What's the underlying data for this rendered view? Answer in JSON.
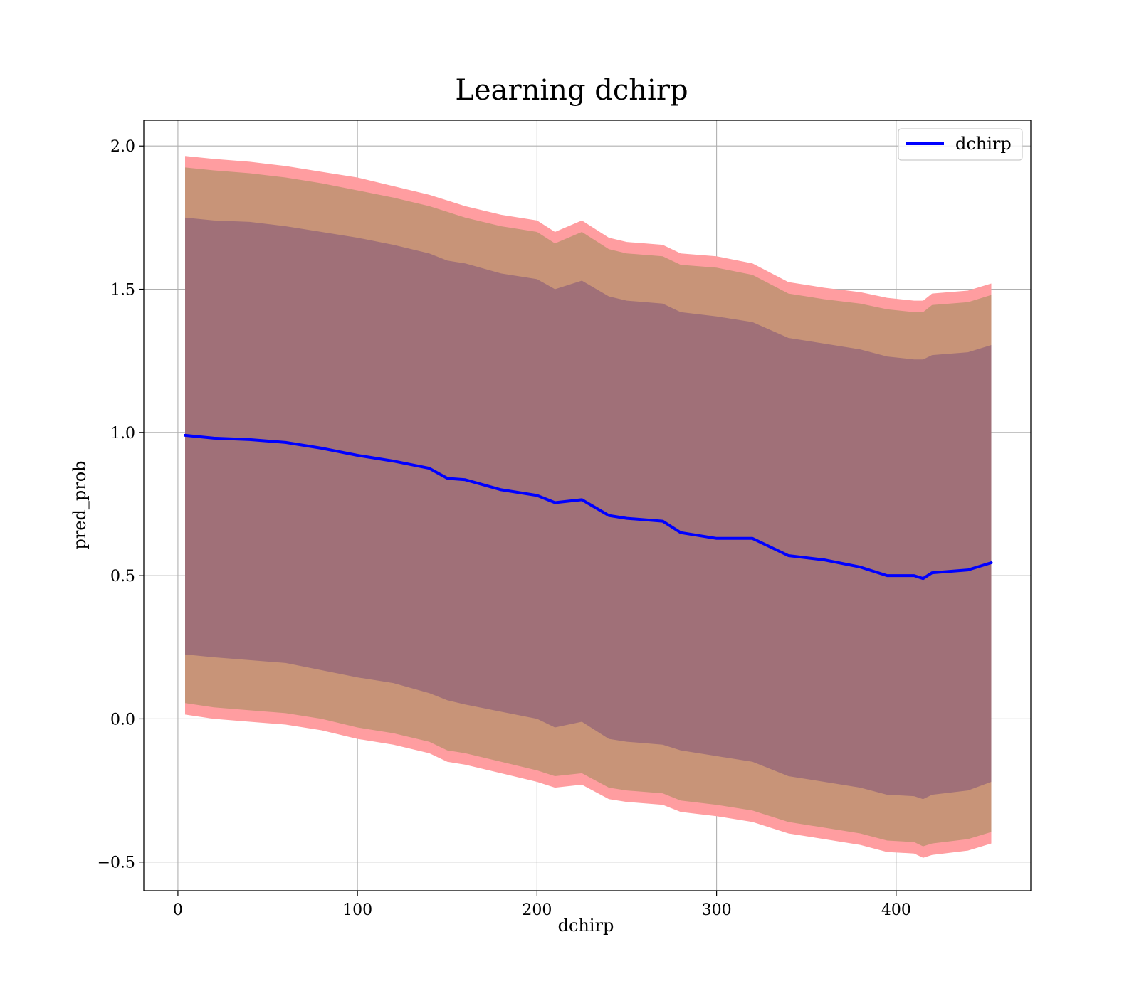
{
  "chart_data": {
    "type": "line",
    "title": "Learning dchirp",
    "xlabel": "dchirp",
    "ylabel": "pred_prob",
    "xlim": [
      -19,
      475
    ],
    "ylim": [
      -0.6,
      2.09
    ],
    "xticks": [
      0,
      100,
      200,
      300,
      400
    ],
    "yticks": [
      -0.5,
      0.0,
      0.5,
      1.0,
      1.5,
      2.0
    ],
    "xtick_labels": [
      "0",
      "100",
      "200",
      "300",
      "400"
    ],
    "ytick_labels": [
      "−0.5",
      "0.0",
      "0.5",
      "1.0",
      "1.5",
      "2.0"
    ],
    "grid": true,
    "legend_position": "top-right",
    "colors": {
      "line": "#0000ff",
      "band_outer": "#ff9da0",
      "band_middle": "#c89478",
      "band_inner": "#a07078"
    },
    "x": [
      4,
      20,
      40,
      60,
      80,
      100,
      120,
      140,
      150,
      160,
      180,
      200,
      210,
      225,
      240,
      250,
      270,
      280,
      300,
      320,
      340,
      360,
      380,
      395,
      410,
      415,
      420,
      440,
      453
    ],
    "series": [
      {
        "name": "dchirp",
        "values": [
          0.99,
          0.98,
          0.975,
          0.965,
          0.945,
          0.92,
          0.9,
          0.875,
          0.84,
          0.835,
          0.8,
          0.78,
          0.755,
          0.765,
          0.71,
          0.7,
          0.69,
          0.65,
          0.63,
          0.63,
          0.57,
          0.555,
          0.53,
          0.5,
          0.5,
          0.49,
          0.51,
          0.52,
          0.545
        ]
      }
    ],
    "bands": [
      {
        "role": "outer",
        "upper": [
          1.965,
          1.955,
          1.945,
          1.93,
          1.91,
          1.89,
          1.86,
          1.83,
          1.81,
          1.79,
          1.76,
          1.74,
          1.7,
          1.74,
          1.68,
          1.665,
          1.655,
          1.625,
          1.615,
          1.59,
          1.525,
          1.505,
          1.49,
          1.47,
          1.46,
          1.46,
          1.485,
          1.495,
          1.52
        ],
        "lower": [
          0.015,
          0.0,
          -0.01,
          -0.02,
          -0.04,
          -0.07,
          -0.09,
          -0.12,
          -0.15,
          -0.16,
          -0.19,
          -0.22,
          -0.24,
          -0.23,
          -0.28,
          -0.29,
          -0.3,
          -0.325,
          -0.34,
          -0.36,
          -0.4,
          -0.42,
          -0.44,
          -0.465,
          -0.47,
          -0.485,
          -0.475,
          -0.46,
          -0.435
        ]
      },
      {
        "role": "middle",
        "upper": [
          1.925,
          1.915,
          1.905,
          1.89,
          1.87,
          1.845,
          1.82,
          1.79,
          1.77,
          1.75,
          1.72,
          1.7,
          1.66,
          1.7,
          1.64,
          1.625,
          1.615,
          1.585,
          1.575,
          1.55,
          1.485,
          1.465,
          1.45,
          1.43,
          1.42,
          1.42,
          1.445,
          1.455,
          1.48
        ],
        "lower": [
          0.055,
          0.04,
          0.03,
          0.02,
          0.0,
          -0.03,
          -0.05,
          -0.08,
          -0.11,
          -0.12,
          -0.15,
          -0.18,
          -0.2,
          -0.19,
          -0.24,
          -0.25,
          -0.26,
          -0.285,
          -0.3,
          -0.32,
          -0.36,
          -0.38,
          -0.4,
          -0.425,
          -0.43,
          -0.445,
          -0.435,
          -0.42,
          -0.395
        ]
      },
      {
        "role": "inner",
        "upper": [
          1.75,
          1.74,
          1.735,
          1.72,
          1.7,
          1.68,
          1.655,
          1.625,
          1.6,
          1.59,
          1.555,
          1.535,
          1.5,
          1.53,
          1.475,
          1.46,
          1.45,
          1.42,
          1.405,
          1.385,
          1.33,
          1.31,
          1.29,
          1.265,
          1.255,
          1.255,
          1.27,
          1.28,
          1.305
        ],
        "lower": [
          0.225,
          0.215,
          0.205,
          0.195,
          0.17,
          0.145,
          0.125,
          0.09,
          0.065,
          0.05,
          0.025,
          0.0,
          -0.03,
          -0.01,
          -0.07,
          -0.08,
          -0.09,
          -0.11,
          -0.13,
          -0.15,
          -0.2,
          -0.22,
          -0.24,
          -0.265,
          -0.27,
          -0.28,
          -0.265,
          -0.25,
          -0.22
        ]
      }
    ]
  }
}
